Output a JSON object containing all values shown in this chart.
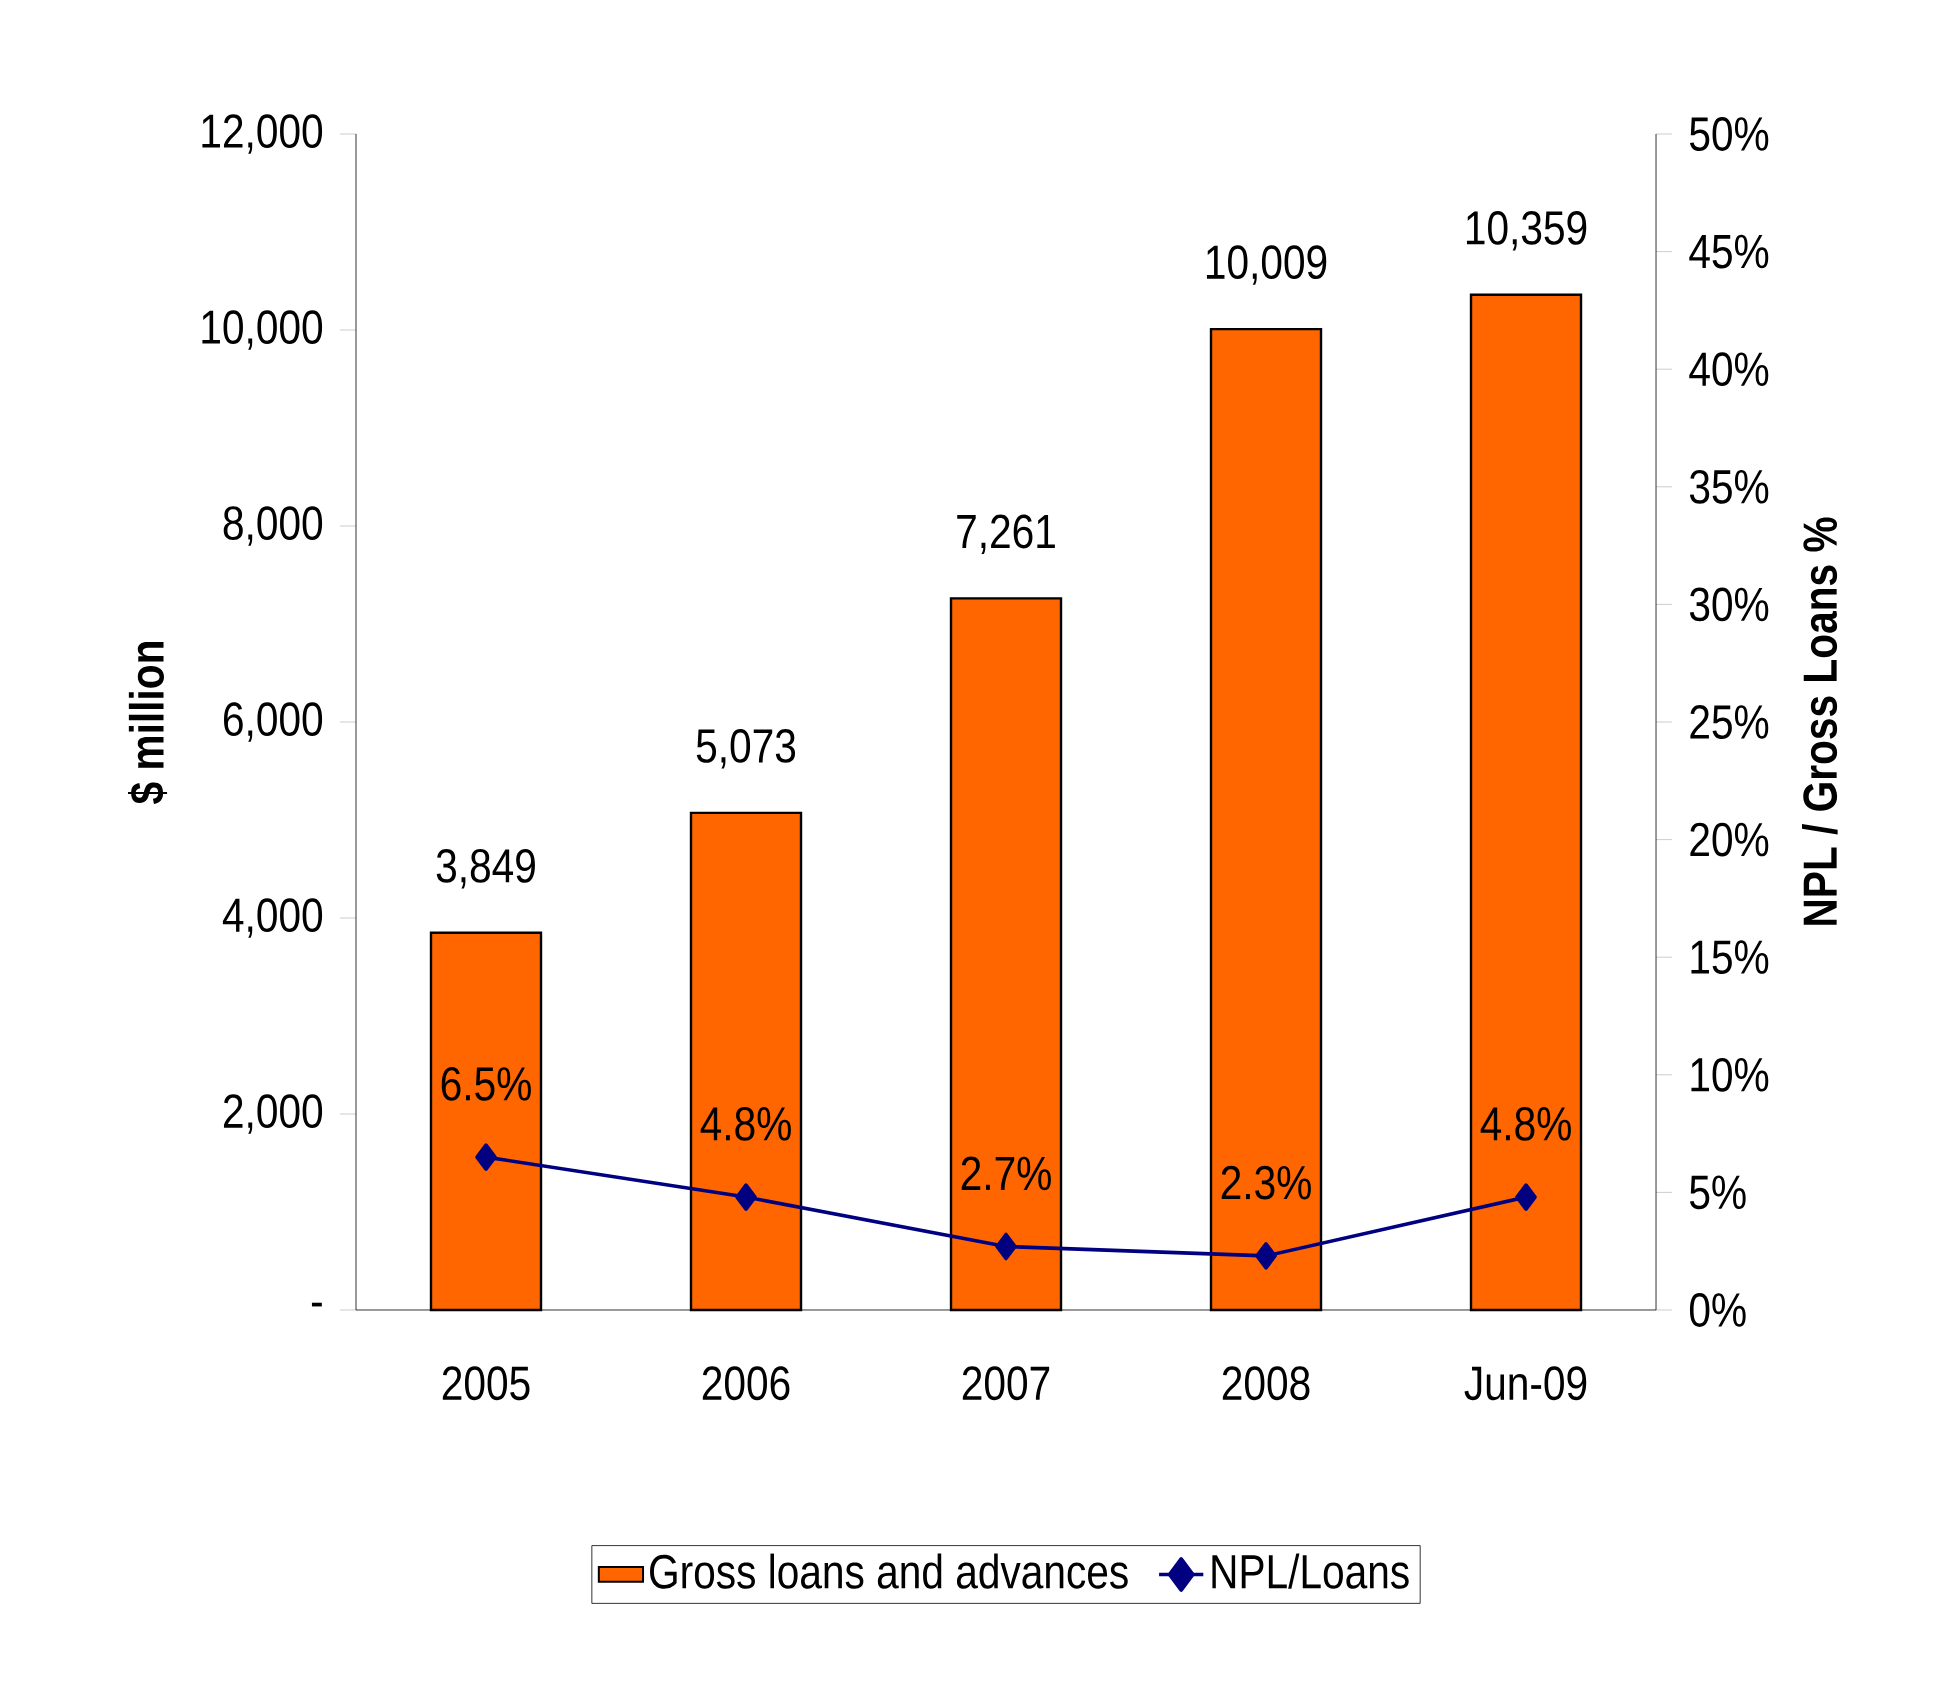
{
  "chart_data": {
    "type": "bar",
    "categories": [
      "2005",
      "2006",
      "2007",
      "2008",
      "Jun-09"
    ],
    "ylabel": "$ million",
    "y2label": "NPL / Gross Loans %",
    "ylim": [
      0,
      12000
    ],
    "yticks": [
      {
        "value": 0,
        "label": "-"
      },
      {
        "value": 2000,
        "label": "2,000"
      },
      {
        "value": 4000,
        "label": "4,000"
      },
      {
        "value": 6000,
        "label": "6,000"
      },
      {
        "value": 8000,
        "label": "8,000"
      },
      {
        "value": 10000,
        "label": "10,000"
      },
      {
        "value": 12000,
        "label": "12,000"
      }
    ],
    "y2lim": [
      0,
      50
    ],
    "y2ticks": [
      {
        "value": 0,
        "label": "0%"
      },
      {
        "value": 5,
        "label": "5%"
      },
      {
        "value": 10,
        "label": "10%"
      },
      {
        "value": 15,
        "label": "15%"
      },
      {
        "value": 20,
        "label": "20%"
      },
      {
        "value": 25,
        "label": "25%"
      },
      {
        "value": 30,
        "label": "30%"
      },
      {
        "value": 35,
        "label": "35%"
      },
      {
        "value": 40,
        "label": "40%"
      },
      {
        "value": 45,
        "label": "45%"
      },
      {
        "value": 50,
        "label": "50%"
      }
    ],
    "legend": "bottom",
    "series": [
      {
        "name": "Gross loans and advances",
        "color": "#ff6600",
        "values": [
          3849,
          5073,
          7261,
          10009,
          10359
        ],
        "value_labels": [
          "3,849",
          "5,073",
          "7,261",
          "10,009",
          "10,359"
        ]
      },
      {
        "name": "NPL/Loans",
        "type": "line",
        "axis": "y2",
        "color": "#000080",
        "marker": "diamond",
        "values": [
          6.5,
          4.8,
          2.7,
          2.3,
          4.8
        ],
        "value_labels": [
          "6.5%",
          "4.8%",
          "2.7%",
          "2.3%",
          "4.8%"
        ]
      }
    ]
  }
}
